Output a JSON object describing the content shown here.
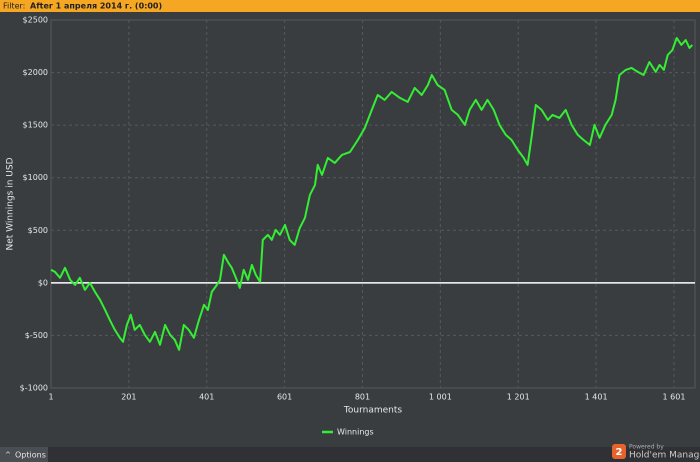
{
  "header": {
    "label": "Filter:",
    "value": "After 1 апреля 2014 г. (0:00)"
  },
  "footer": {
    "button": "Options",
    "powered": "Powered by",
    "brand": "Hold'em Manager",
    "logo": "2"
  },
  "chart_data": {
    "type": "line",
    "xlabel": "Tournaments",
    "ylabel": "Net Winnings in USD",
    "xlim": [
      1,
      1655
    ],
    "ylim": [
      -1000,
      2500
    ],
    "xticks": [
      1,
      201,
      401,
      601,
      801,
      {
        "value": 1001,
        "label": "1 001"
      },
      {
        "value": 1201,
        "label": "1 201"
      },
      {
        "value": 1401,
        "label": "1 401"
      },
      {
        "value": 1601,
        "label": "1 601"
      }
    ],
    "yticks": [
      {
        "value": -1000,
        "label": "$-1000"
      },
      {
        "value": -500,
        "label": "$-500"
      },
      {
        "value": 0,
        "label": "$0"
      },
      {
        "value": 500,
        "label": "$500"
      },
      {
        "value": 1000,
        "label": "$1000"
      },
      {
        "value": 1500,
        "label": "$1500"
      },
      {
        "value": 2000,
        "label": "$2000"
      },
      {
        "value": 2500,
        "label": "$2500"
      }
    ],
    "grid": true,
    "x": [
      1,
      11,
      24,
      37,
      50,
      63,
      75,
      88,
      101,
      114,
      127,
      140,
      152,
      165,
      178,
      186,
      196,
      206,
      216,
      229,
      242,
      255,
      268,
      281,
      294,
      307,
      319,
      330,
      342,
      355,
      368,
      381,
      394,
      404,
      414,
      427,
      435,
      445,
      455,
      465,
      476,
      486,
      496,
      507,
      517,
      527,
      538,
      545,
      558,
      568,
      578,
      589,
      602,
      614,
      627,
      640,
      653,
      666,
      679,
      686,
      697,
      712,
      730,
      748,
      769,
      789,
      807,
      825,
      840,
      858,
      876,
      897,
      917,
      935,
      953,
      969,
      979,
      994,
      1012,
      1030,
      1046,
      1064,
      1076,
      1092,
      1107,
      1122,
      1138,
      1153,
      1169,
      1184,
      1200,
      1215,
      1225,
      1236,
      1246,
      1261,
      1277,
      1289,
      1307,
      1323,
      1338,
      1354,
      1369,
      1385,
      1397,
      1410,
      1425,
      1441,
      1451,
      1461,
      1477,
      1492,
      1508,
      1523,
      1538,
      1554,
      1564,
      1575,
      1585,
      1597,
      1608,
      1620,
      1631,
      1641,
      1648
    ],
    "series": [
      {
        "name": "Winnings",
        "color": "#33ee33",
        "values": [
          124,
          105,
          48,
          143,
          30,
          -20,
          48,
          -67,
          0,
          -86,
          -162,
          -257,
          -352,
          -447,
          -523,
          -561,
          -400,
          -304,
          -447,
          -400,
          -494,
          -561,
          -466,
          -589,
          -400,
          -494,
          -542,
          -637,
          -400,
          -447,
          -523,
          -352,
          -209,
          -257,
          -86,
          -19,
          29,
          266,
          200,
          143,
          48,
          -48,
          124,
          29,
          171,
          76,
          10,
          409,
          456,
          409,
          504,
          456,
          551,
          409,
          361,
          523,
          618,
          837,
          932,
          1122,
          1027,
          1188,
          1141,
          1217,
          1245,
          1359,
          1473,
          1645,
          1787,
          1740,
          1816,
          1759,
          1721,
          1854,
          1787,
          1882,
          1977,
          1882,
          1835,
          1645,
          1597,
          1502,
          1645,
          1740,
          1645,
          1740,
          1645,
          1502,
          1407,
          1359,
          1264,
          1188,
          1122,
          1407,
          1692,
          1645,
          1550,
          1597,
          1569,
          1645,
          1502,
          1407,
          1359,
          1312,
          1502,
          1379,
          1502,
          1597,
          1740,
          1977,
          2025,
          2044,
          2006,
          1977,
          2101,
          2006,
          2073,
          2025,
          2167,
          2215,
          2329,
          2263,
          2310,
          2234,
          2263
        ]
      }
    ]
  }
}
